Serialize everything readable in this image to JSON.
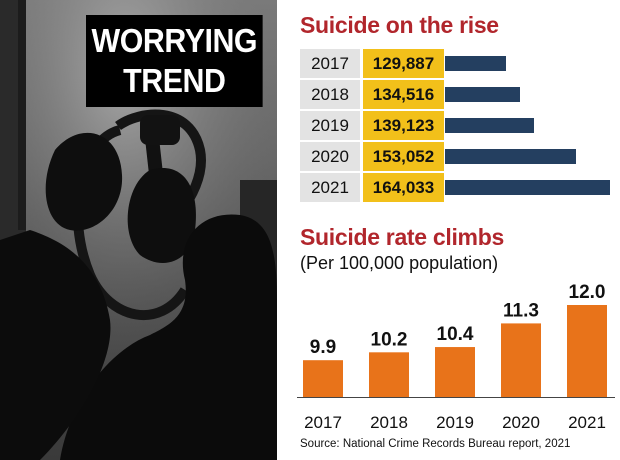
{
  "headline": {
    "line1": "WORRYING",
    "line2": "TREND"
  },
  "colors": {
    "accent_red": "#b1262c",
    "value_highlight": "#f2c01a",
    "hbar": "#243f60",
    "vbar": "#e8731a"
  },
  "chart_data": [
    {
      "type": "table",
      "title": "Suicide on the rise",
      "categories": [
        "2017",
        "2018",
        "2019",
        "2020",
        "2021"
      ],
      "values": [
        129887,
        134516,
        139123,
        153052,
        164033
      ],
      "value_labels": [
        "129,887",
        "134,516",
        "139,123",
        "153,052",
        "164,033"
      ],
      "bar_orientation": "horizontal"
    },
    {
      "type": "bar",
      "title": "Suicide rate climbs",
      "subtitle": "(Per 100,000 population)",
      "categories": [
        "2017",
        "2018",
        "2019",
        "2020",
        "2021"
      ],
      "values": [
        9.9,
        10.2,
        10.4,
        11.3,
        12.0
      ],
      "value_labels": [
        "9.9",
        "10.2",
        "10.4",
        "11.3",
        "12.0"
      ],
      "ylim": [
        0,
        12.0
      ],
      "grid": false
    }
  ],
  "source": "Source: National Crime Records Bureau report, 2021"
}
